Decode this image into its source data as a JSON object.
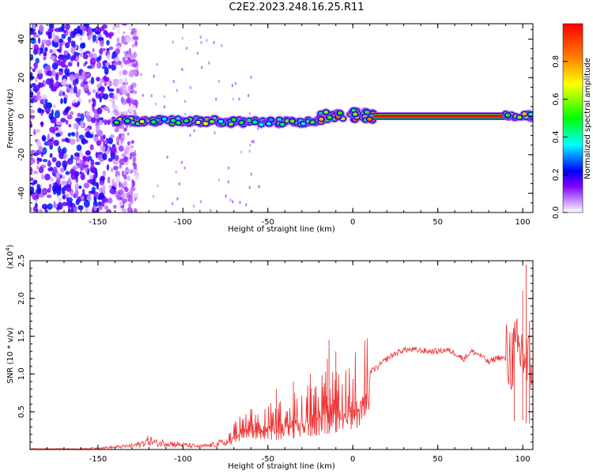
{
  "title": "C2E2.2023.248.16.25.R11",
  "chart_data": [
    {
      "type": "heatmap",
      "xlabel": "Height of straight line (km)",
      "ylabel": "Frequency (Hz)",
      "xlim": [
        -190,
        106
      ],
      "ylim": [
        -50,
        48
      ],
      "xticks": [
        -150,
        -100,
        -50,
        0,
        50,
        100
      ],
      "yticks": [
        -40,
        -20,
        0,
        20,
        40
      ],
      "colorbar": {
        "label": "Normalized spectral amplitude",
        "range": [
          0,
          1
        ],
        "ticks": [
          0.0,
          0.2,
          0.4,
          0.6,
          0.8
        ],
        "tick_labels": [
          "0.0",
          "0.2",
          "0.4",
          "0.6",
          "0.8"
        ],
        "colormap": [
          "#ffffff",
          "#b000ff",
          "#0000ff",
          "#00ffff",
          "#00ff00",
          "#ffff00",
          "#ff8000",
          "#ff0000"
        ]
      },
      "features": {
        "noise_region_x": [
          -190,
          -135
        ],
        "noise_amplitude": 0.25,
        "ridge_frequency_hz": 0,
        "ridge_segments": [
          {
            "x": [
              -140,
              -80
            ],
            "freq_center": -2.5,
            "amplitude": 0.55
          },
          {
            "x": [
              -80,
              -20
            ],
            "freq_center": -3,
            "amplitude": 0.5
          },
          {
            "x": [
              -20,
              12
            ],
            "freq_center": 0,
            "amplitude": 0.75
          },
          {
            "x": [
              12,
              90
            ],
            "freq_center": 0,
            "amplitude": 1.0
          },
          {
            "x": [
              90,
              106
            ],
            "freq_center": 0,
            "amplitude": 0.7
          }
        ]
      }
    },
    {
      "type": "line",
      "xlabel": "Height of straight line (km)",
      "ylabel": "SNR (10 * v/v)",
      "yunit_multiplier": "(x10",
      "yunit_exponent": "4",
      "yunit_close": ")",
      "xlim": [
        -190,
        106
      ],
      "ylim": [
        0,
        2.5
      ],
      "xticks": [
        -150,
        -100,
        -50,
        0,
        50,
        100
      ],
      "yticks": [
        0.5,
        1.0,
        1.5,
        2.0,
        2.5
      ],
      "ytick_labels": [
        "0.5",
        "1.0",
        "1.5",
        "2.0",
        "2.5"
      ],
      "series": [
        {
          "color": "#ee3333",
          "x": [
            -190,
            -180,
            -170,
            -160,
            -150,
            -140,
            -130,
            -125,
            -120,
            -115,
            -110,
            -105,
            -100,
            -95,
            -90,
            -85,
            -80,
            -75,
            -70,
            -65,
            -60,
            -55,
            -50,
            -45,
            -40,
            -35,
            -30,
            -25,
            -20,
            -15,
            -10,
            -5,
            0,
            5,
            10,
            15,
            20,
            25,
            30,
            35,
            40,
            45,
            50,
            55,
            60,
            65,
            70,
            75,
            80,
            85,
            90,
            95,
            100,
            103,
            106
          ],
          "y": [
            0.01,
            0.01,
            0.01,
            0.01,
            0.02,
            0.03,
            0.05,
            0.07,
            0.12,
            0.08,
            0.09,
            0.07,
            0.06,
            0.05,
            0.04,
            0.05,
            0.07,
            0.1,
            0.25,
            0.32,
            0.35,
            0.36,
            0.4,
            0.42,
            0.45,
            0.5,
            0.55,
            0.58,
            0.62,
            0.7,
            0.75,
            0.8,
            0.9,
            0.95,
            1.02,
            1.1,
            1.2,
            1.27,
            1.32,
            1.32,
            1.31,
            1.3,
            1.3,
            1.32,
            1.28,
            1.2,
            1.3,
            1.25,
            1.15,
            1.22,
            1.2,
            1.25,
            1.3,
            1.1,
            1.2
          ],
          "spikes": [
            {
              "x": -45,
              "y": 0.8
            },
            {
              "x": -35,
              "y": 0.9
            },
            {
              "x": -25,
              "y": 1.0
            },
            {
              "x": -15,
              "y": 1.2
            },
            {
              "x": -14,
              "y": 1.45
            },
            {
              "x": -10,
              "y": 1.3
            },
            {
              "x": 95,
              "y": 1.4
            },
            {
              "x": 100,
              "y": 2.1
            },
            {
              "x": 102,
              "y": 2.45
            },
            {
              "x": 104,
              "y": 1.7
            }
          ]
        }
      ]
    }
  ]
}
